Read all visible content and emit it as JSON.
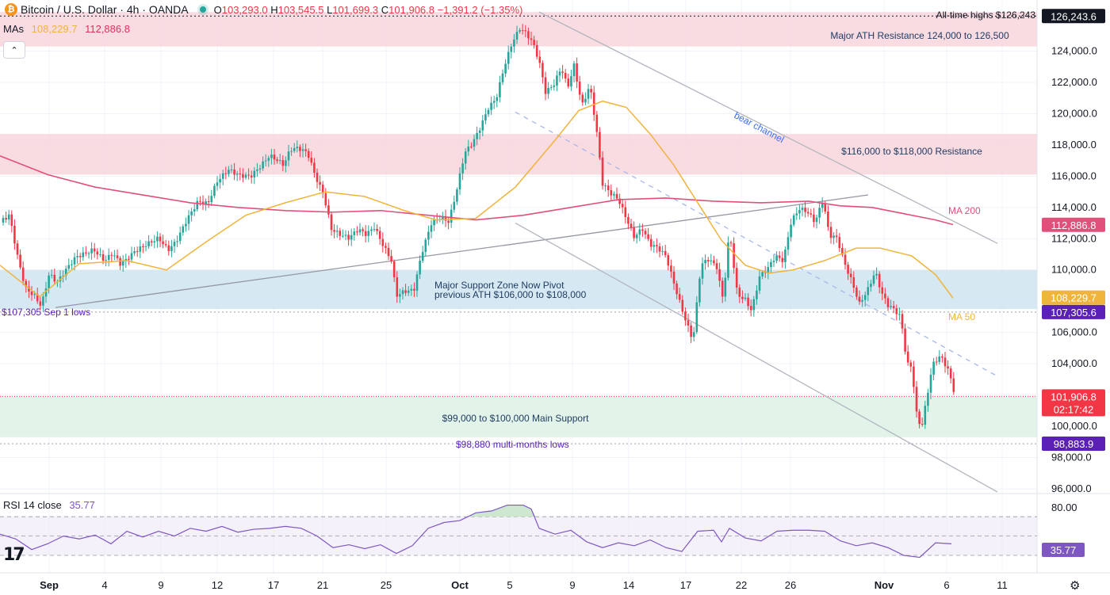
{
  "header": {
    "symbol": "Bitcoin / U.S. Dollar · 4h · OANDA",
    "open_label": "O",
    "open": "103,293.0",
    "high_label": "H",
    "high": "103,545.5",
    "low_label": "L",
    "low": "101,699.3",
    "close_label": "C",
    "close": "101,906.8",
    "change": "−1,391.2 (−1.35%)"
  },
  "mas": {
    "label": "MAs",
    "ma50": "108,229.7",
    "ma200": "112,886.8"
  },
  "rsi": {
    "label": "RSI 14 close",
    "value": "35.77"
  },
  "colors": {
    "up": "#26a69a",
    "down": "#f23645",
    "ma50": "#f0b43c",
    "ma200": "#e0507a",
    "rsi": "#7e57c2",
    "resistance_zone": "#f8d7df",
    "support_zone": "#cfe4f0",
    "main_support_zone": "#dff3e8"
  },
  "chart_data": {
    "type": "candlestick",
    "ylim": [
      95500,
      126800
    ],
    "x_ticks": [
      "Sep",
      "4",
      "9",
      "12",
      "17",
      "21",
      "25",
      "Oct",
      "5",
      "9",
      "14",
      "17",
      "22",
      "26",
      "Nov",
      "6",
      "11"
    ],
    "y_ticks": [
      "124,000.0",
      "122,000.0",
      "120,000.0",
      "118,000.0",
      "116,000.0",
      "114,000.0",
      "112,000.0",
      "110,000.0",
      "106,000.0",
      "104,000.0",
      "100,000.0",
      "98,000.0",
      "96,000.0"
    ],
    "price_tags": [
      {
        "text": "126,243.6",
        "price": 126243.6,
        "color": "#131722"
      },
      {
        "text": "112,886.8",
        "price": 112886.8,
        "color": "#e0507a"
      },
      {
        "text": "108,229.7",
        "price": 108229.7,
        "color": "#f0b43c"
      },
      {
        "text": "107,305.6",
        "price": 107305.6,
        "color": "#5b21b6"
      },
      {
        "text": "101,906.8",
        "sub": "02:17:42",
        "price": 101906.8,
        "color": "#f23645"
      },
      {
        "text": "98,883.9",
        "price": 98883.9,
        "color": "#5b21b6"
      }
    ],
    "zones": [
      {
        "name": "Major ATH Resistance",
        "from": 124300,
        "to": 126500,
        "label": "Major ATH Resistance 124,000 to 126,500"
      },
      {
        "name": "Resistance",
        "from": 116100,
        "to": 118700,
        "label": "$116,000 to $118,000 Resistance"
      },
      {
        "name": "Major Support",
        "from": 107500,
        "to": 110000,
        "label_line1": "Major Support Zone  Now Pivot",
        "label_line2": "previous ATH $106,000 to $108,000"
      },
      {
        "name": "Main Support",
        "from": 99300,
        "to": 101900,
        "label": "$99,000 to $100,000 Main Support"
      }
    ],
    "levels": [
      {
        "price": 126243,
        "label": "All-time highs $126,243"
      },
      {
        "price": 107305,
        "label": "$107,305 Sep 1 lows"
      },
      {
        "price": 98880,
        "label": "$98,880 multi-months lows"
      }
    ],
    "annotations": {
      "bear_channel": "bear channel",
      "ma200": "MA 200",
      "ma50": "MA 50"
    },
    "close_path": [
      [
        1,
        113000
      ],
      [
        12,
        113400
      ],
      [
        22,
        110800
      ],
      [
        32,
        108800
      ],
      [
        44,
        108300
      ],
      [
        52,
        107700
      ],
      [
        62,
        109800
      ],
      [
        72,
        109300
      ],
      [
        84,
        110200
      ],
      [
        96,
        111000
      ],
      [
        106,
        111200
      ],
      [
        118,
        111500
      ],
      [
        132,
        110800
      ],
      [
        142,
        111300
      ],
      [
        152,
        110600
      ],
      [
        160,
        110900
      ],
      [
        170,
        111400
      ],
      [
        184,
        111800
      ],
      [
        200,
        112200
      ],
      [
        212,
        111400
      ],
      [
        222,
        111900
      ],
      [
        236,
        113300
      ],
      [
        250,
        114400
      ],
      [
        262,
        114200
      ],
      [
        274,
        115600
      ],
      [
        288,
        116300
      ],
      [
        302,
        115900
      ],
      [
        316,
        115800
      ],
      [
        328,
        116400
      ],
      [
        340,
        117100
      ],
      [
        350,
        116800
      ],
      [
        358,
        116500
      ],
      [
        366,
        117500
      ],
      [
        376,
        117600
      ],
      [
        388,
        117300
      ],
      [
        398,
        115800
      ],
      [
        408,
        114700
      ],
      [
        418,
        112500
      ],
      [
        428,
        112200
      ],
      [
        440,
        112000
      ],
      [
        452,
        112600
      ],
      [
        462,
        112300
      ],
      [
        472,
        112800
      ],
      [
        484,
        111600
      ],
      [
        494,
        110700
      ],
      [
        500,
        108500
      ],
      [
        510,
        108800
      ],
      [
        522,
        108900
      ],
      [
        532,
        111300
      ],
      [
        544,
        113200
      ],
      [
        556,
        113600
      ],
      [
        566,
        113300
      ],
      [
        576,
        115300
      ],
      [
        586,
        117700
      ],
      [
        596,
        118300
      ],
      [
        606,
        119300
      ],
      [
        616,
        120500
      ],
      [
        626,
        121100
      ],
      [
        636,
        123100
      ],
      [
        646,
        124600
      ],
      [
        656,
        125500
      ],
      [
        664,
        125100
      ],
      [
        672,
        124500
      ],
      [
        680,
        123300
      ],
      [
        688,
        121300
      ],
      [
        698,
        121700
      ],
      [
        708,
        122800
      ],
      [
        716,
        121500
      ],
      [
        724,
        122900
      ],
      [
        734,
        120300
      ],
      [
        744,
        121600
      ],
      [
        752,
        118900
      ],
      [
        760,
        115300
      ],
      [
        770,
        114700
      ],
      [
        780,
        114300
      ],
      [
        790,
        113100
      ],
      [
        800,
        111900
      ],
      [
        810,
        112500
      ],
      [
        820,
        111500
      ],
      [
        830,
        111300
      ],
      [
        840,
        110800
      ],
      [
        850,
        109100
      ],
      [
        858,
        107800
      ],
      [
        866,
        106600
      ],
      [
        874,
        105500
      ],
      [
        884,
        110400
      ],
      [
        894,
        110800
      ],
      [
        904,
        110300
      ],
      [
        912,
        108200
      ],
      [
        920,
        112700
      ],
      [
        930,
        108600
      ],
      [
        940,
        108300
      ],
      [
        948,
        107600
      ],
      [
        958,
        109800
      ],
      [
        968,
        110300
      ],
      [
        978,
        111100
      ],
      [
        988,
        110800
      ],
      [
        998,
        113300
      ],
      [
        1008,
        114100
      ],
      [
        1018,
        113900
      ],
      [
        1028,
        113200
      ],
      [
        1038,
        114600
      ],
      [
        1046,
        112300
      ],
      [
        1056,
        112100
      ],
      [
        1064,
        110600
      ],
      [
        1074,
        109300
      ],
      [
        1084,
        107800
      ],
      [
        1094,
        108600
      ],
      [
        1104,
        109800
      ],
      [
        1112,
        108400
      ],
      [
        1120,
        107600
      ],
      [
        1128,
        107300
      ],
      [
        1136,
        106800
      ],
      [
        1144,
        103800
      ],
      [
        1150,
        103600
      ],
      [
        1156,
        100600
      ],
      [
        1162,
        99600
      ],
      [
        1168,
        101300
      ],
      [
        1176,
        103700
      ],
      [
        1186,
        104300
      ],
      [
        1196,
        103400
      ],
      [
        1204,
        101900
      ]
    ],
    "ma50_path": [
      [
        0,
        110300
      ],
      [
        50,
        108300
      ],
      [
        100,
        110400
      ],
      [
        160,
        110600
      ],
      [
        210,
        110000
      ],
      [
        260,
        111800
      ],
      [
        310,
        113500
      ],
      [
        360,
        114300
      ],
      [
        410,
        115000
      ],
      [
        460,
        114700
      ],
      [
        510,
        113800
      ],
      [
        550,
        113200
      ],
      [
        600,
        113300
      ],
      [
        650,
        115300
      ],
      [
        700,
        118300
      ],
      [
        730,
        120200
      ],
      [
        760,
        120800
      ],
      [
        790,
        120400
      ],
      [
        820,
        118700
      ],
      [
        850,
        116700
      ],
      [
        880,
        114300
      ],
      [
        910,
        111900
      ],
      [
        940,
        110300
      ],
      [
        970,
        109800
      ],
      [
        1000,
        110000
      ],
      [
        1040,
        110600
      ],
      [
        1080,
        111400
      ],
      [
        1110,
        111400
      ],
      [
        1150,
        110900
      ],
      [
        1180,
        109700
      ],
      [
        1202,
        108200
      ]
    ],
    "ma200_path": [
      [
        0,
        117300
      ],
      [
        60,
        116100
      ],
      [
        120,
        115300
      ],
      [
        180,
        114800
      ],
      [
        240,
        114300
      ],
      [
        300,
        114000
      ],
      [
        360,
        113800
      ],
      [
        420,
        113700
      ],
      [
        480,
        113800
      ],
      [
        540,
        113500
      ],
      [
        600,
        113200
      ],
      [
        660,
        113500
      ],
      [
        720,
        114000
      ],
      [
        780,
        114500
      ],
      [
        840,
        114600
      ],
      [
        900,
        114400
      ],
      [
        960,
        114300
      ],
      [
        1020,
        114400
      ],
      [
        1060,
        114100
      ],
      [
        1100,
        114000
      ],
      [
        1140,
        113600
      ],
      [
        1180,
        113200
      ],
      [
        1202,
        112900
      ]
    ],
    "rsi_path": [
      [
        0,
        52
      ],
      [
        20,
        47
      ],
      [
        40,
        36
      ],
      [
        60,
        42
      ],
      [
        80,
        50
      ],
      [
        100,
        47
      ],
      [
        120,
        51
      ],
      [
        140,
        42
      ],
      [
        160,
        55
      ],
      [
        180,
        49
      ],
      [
        200,
        55
      ],
      [
        220,
        50
      ],
      [
        240,
        58
      ],
      [
        260,
        55
      ],
      [
        280,
        60
      ],
      [
        300,
        54
      ],
      [
        320,
        57
      ],
      [
        340,
        58
      ],
      [
        360,
        60
      ],
      [
        380,
        58
      ],
      [
        400,
        50
      ],
      [
        420,
        38
      ],
      [
        440,
        41
      ],
      [
        460,
        37
      ],
      [
        480,
        41
      ],
      [
        500,
        32
      ],
      [
        520,
        40
      ],
      [
        540,
        58
      ],
      [
        560,
        64
      ],
      [
        580,
        66
      ],
      [
        600,
        74
      ],
      [
        620,
        76
      ],
      [
        640,
        82
      ],
      [
        660,
        82
      ],
      [
        670,
        78
      ],
      [
        680,
        58
      ],
      [
        700,
        52
      ],
      [
        720,
        56
      ],
      [
        740,
        44
      ],
      [
        760,
        38
      ],
      [
        780,
        43
      ],
      [
        800,
        40
      ],
      [
        820,
        46
      ],
      [
        840,
        38
      ],
      [
        860,
        34
      ],
      [
        880,
        55
      ],
      [
        900,
        56
      ],
      [
        910,
        44
      ],
      [
        920,
        58
      ],
      [
        940,
        48
      ],
      [
        960,
        45
      ],
      [
        980,
        55
      ],
      [
        1000,
        56
      ],
      [
        1020,
        56
      ],
      [
        1040,
        55
      ],
      [
        1060,
        45
      ],
      [
        1080,
        40
      ],
      [
        1100,
        43
      ],
      [
        1120,
        38
      ],
      [
        1140,
        30
      ],
      [
        1160,
        28
      ],
      [
        1180,
        43
      ],
      [
        1200,
        42
      ]
    ],
    "rsi_levels": [
      80,
      70,
      50,
      30
    ]
  }
}
